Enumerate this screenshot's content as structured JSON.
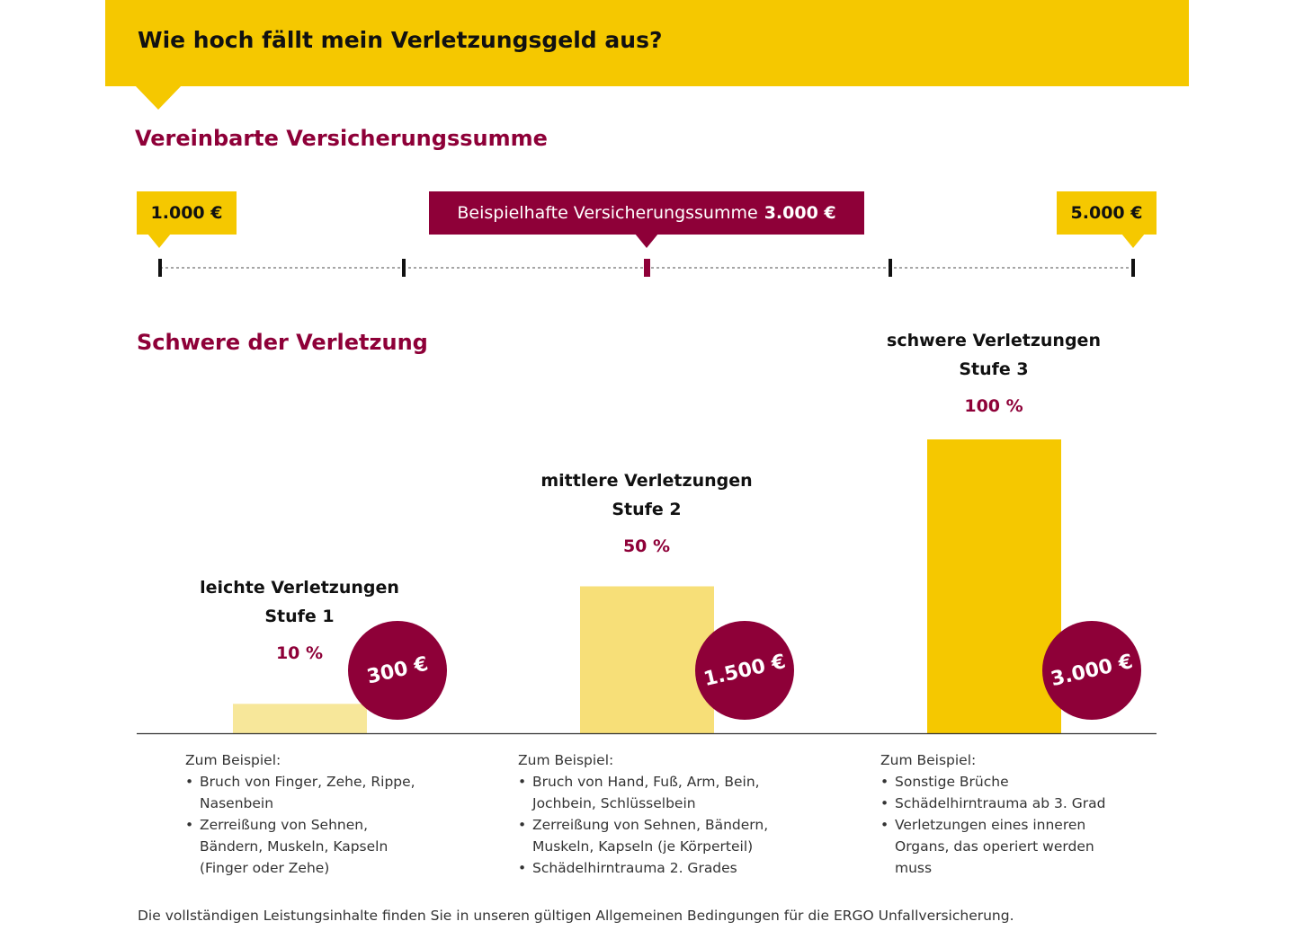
{
  "header": {
    "title": "Wie hoch fällt mein Verletzungsgeld aus?"
  },
  "sum_section": {
    "title": "Vereinbarte Versicherungssumme",
    "min_label": "1.000 €",
    "max_label": "5.000 €",
    "example_prefix": "Beispielhafte Versicherungssumme",
    "example_value": "3.000 €"
  },
  "injury_section": {
    "title": "Schwere der Verletzung"
  },
  "chart_data": {
    "type": "bar",
    "title": "Schwere der Verletzung",
    "categories": [
      "leichte Verletzungen",
      "mittlere Verletzungen",
      "schwere Verletzungen"
    ],
    "stages": [
      "Stufe 1",
      "Stufe 2",
      "Stufe 3"
    ],
    "values": [
      10,
      50,
      100
    ],
    "value_labels": [
      "10 %",
      "50 %",
      "100 %"
    ],
    "payouts": [
      "300 €",
      "1.500 €",
      "3.000 €"
    ],
    "ylim": [
      0,
      100
    ],
    "grid": false,
    "colors": [
      "#f7e79a",
      "#f7df78",
      "#f5c800"
    ],
    "bubble_color": "#8e0038"
  },
  "examples": [
    {
      "heading": "Zum Beispiel:",
      "items": [
        "Bruch von Finger, Zehe, Rippe, Nasenbein",
        "Zerreißung von Sehnen, Bändern, Muskeln, Kapseln (Finger oder Zehe)"
      ]
    },
    {
      "heading": "Zum Beispiel:",
      "items": [
        "Bruch von Hand, Fuß, Arm, Bein, Jochbein, Schlüsselbein",
        "Zerreißung von Sehnen, Bändern, Muskeln, Kapseln (je Körperteil)",
        "Schädelhirntrauma 2. Grades"
      ]
    },
    {
      "heading": "Zum Beispiel:",
      "items": [
        "Sonstige Brüche",
        "Schädelhirntrauma ab 3. Grad",
        "Verletzungen eines inneren Organs, das operiert werden muss"
      ]
    }
  ],
  "footer": {
    "text": "Die vollständigen Leistungsinhalte finden Sie in unseren gültigen Allgemeinen Bedingungen für die ERGO Unfallversicherung."
  },
  "colors": {
    "accent_yellow": "#f5c800",
    "accent_red": "#8e0038"
  }
}
